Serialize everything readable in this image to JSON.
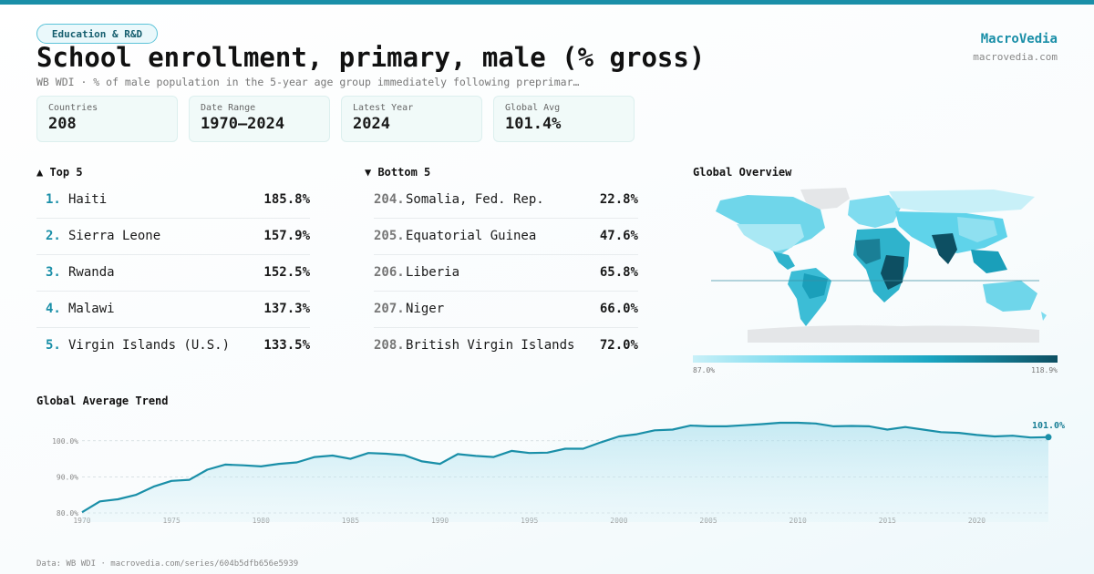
{
  "header": {
    "badge": "Education & R&D",
    "title": "School enrollment, primary, male (% gross)",
    "subtitle": "WB WDI · % of male population in the 5-year age group immediately following preprimar…"
  },
  "brand": {
    "name": "MacroVedia",
    "url": "macrovedia.com"
  },
  "stats": [
    {
      "label": "Countries",
      "value": "208"
    },
    {
      "label": "Date Range",
      "value": "1970–2024"
    },
    {
      "label": "Latest Year",
      "value": "2024"
    },
    {
      "label": "Global Avg",
      "value": "101.4%"
    }
  ],
  "top5": {
    "heading": "▲ Top 5",
    "items": [
      {
        "rank": "1.",
        "name": "Haiti",
        "value": "185.8%"
      },
      {
        "rank": "2.",
        "name": "Sierra Leone",
        "value": "157.9%"
      },
      {
        "rank": "3.",
        "name": "Rwanda",
        "value": "152.5%"
      },
      {
        "rank": "4.",
        "name": "Malawi",
        "value": "137.3%"
      },
      {
        "rank": "5.",
        "name": "Virgin Islands (U.S.)",
        "value": "133.5%"
      }
    ]
  },
  "bottom5": {
    "heading": "▼ Bottom 5",
    "items": [
      {
        "rank": "204.",
        "name": "Somalia, Fed. Rep.",
        "value": "22.8%"
      },
      {
        "rank": "205.",
        "name": "Equatorial Guinea",
        "value": "47.6%"
      },
      {
        "rank": "206.",
        "name": "Liberia",
        "value": "65.8%"
      },
      {
        "rank": "207.",
        "name": "Niger",
        "value": "66.0%"
      },
      {
        "rank": "208.",
        "name": "British Virgin Islands",
        "value": "72.0%"
      }
    ]
  },
  "map": {
    "heading": "Global Overview",
    "legend_min": "87.0%",
    "legend_max": "118.9%",
    "colors": {
      "low": "#c8f0f8",
      "mid": "#1aa6c2",
      "high": "#0d4f62",
      "nodata": "#e4e6e8"
    }
  },
  "trend": {
    "heading": "Global Average Trend",
    "end_label": "101.0%"
  },
  "footer": "Data: WB WDI · macrovedia.com/series/604b5dfb656e5939",
  "chart_data": {
    "type": "area",
    "x": [
      1970,
      1971,
      1972,
      1973,
      1974,
      1975,
      1976,
      1977,
      1978,
      1979,
      1980,
      1981,
      1982,
      1983,
      1984,
      1985,
      1986,
      1987,
      1988,
      1989,
      1990,
      1991,
      1992,
      1993,
      1994,
      1995,
      1996,
      1997,
      1998,
      1999,
      2000,
      2001,
      2002,
      2003,
      2004,
      2005,
      2006,
      2007,
      2008,
      2009,
      2010,
      2011,
      2012,
      2013,
      2014,
      2015,
      2016,
      2017,
      2018,
      2019,
      2020,
      2021,
      2022,
      2023,
      2024
    ],
    "values": [
      80.2,
      83.2,
      83.8,
      85.0,
      87.3,
      88.9,
      89.2,
      92.0,
      93.4,
      93.2,
      92.9,
      93.6,
      94.0,
      95.5,
      95.9,
      95.0,
      96.6,
      96.4,
      96.0,
      94.3,
      93.6,
      96.3,
      95.8,
      95.5,
      97.2,
      96.6,
      96.7,
      97.8,
      97.8,
      99.6,
      101.2,
      101.8,
      102.9,
      103.1,
      104.2,
      104.0,
      104.0,
      104.3,
      104.6,
      105.0,
      105.0,
      104.8,
      104.0,
      104.1,
      104.0,
      103.1,
      103.8,
      103.1,
      102.4,
      102.2,
      101.6,
      101.2,
      101.4,
      100.9,
      101.0
    ],
    "xlabel": "",
    "ylabel": "",
    "xticks": [
      1970,
      1975,
      1980,
      1985,
      1990,
      1995,
      2000,
      2005,
      2010,
      2015,
      2020
    ],
    "yticks": [
      80,
      90,
      100
    ],
    "ytick_labels": [
      "80.0%",
      "90.0%",
      "100.0%"
    ],
    "ylim": [
      79.5,
      106
    ],
    "grid": true
  }
}
